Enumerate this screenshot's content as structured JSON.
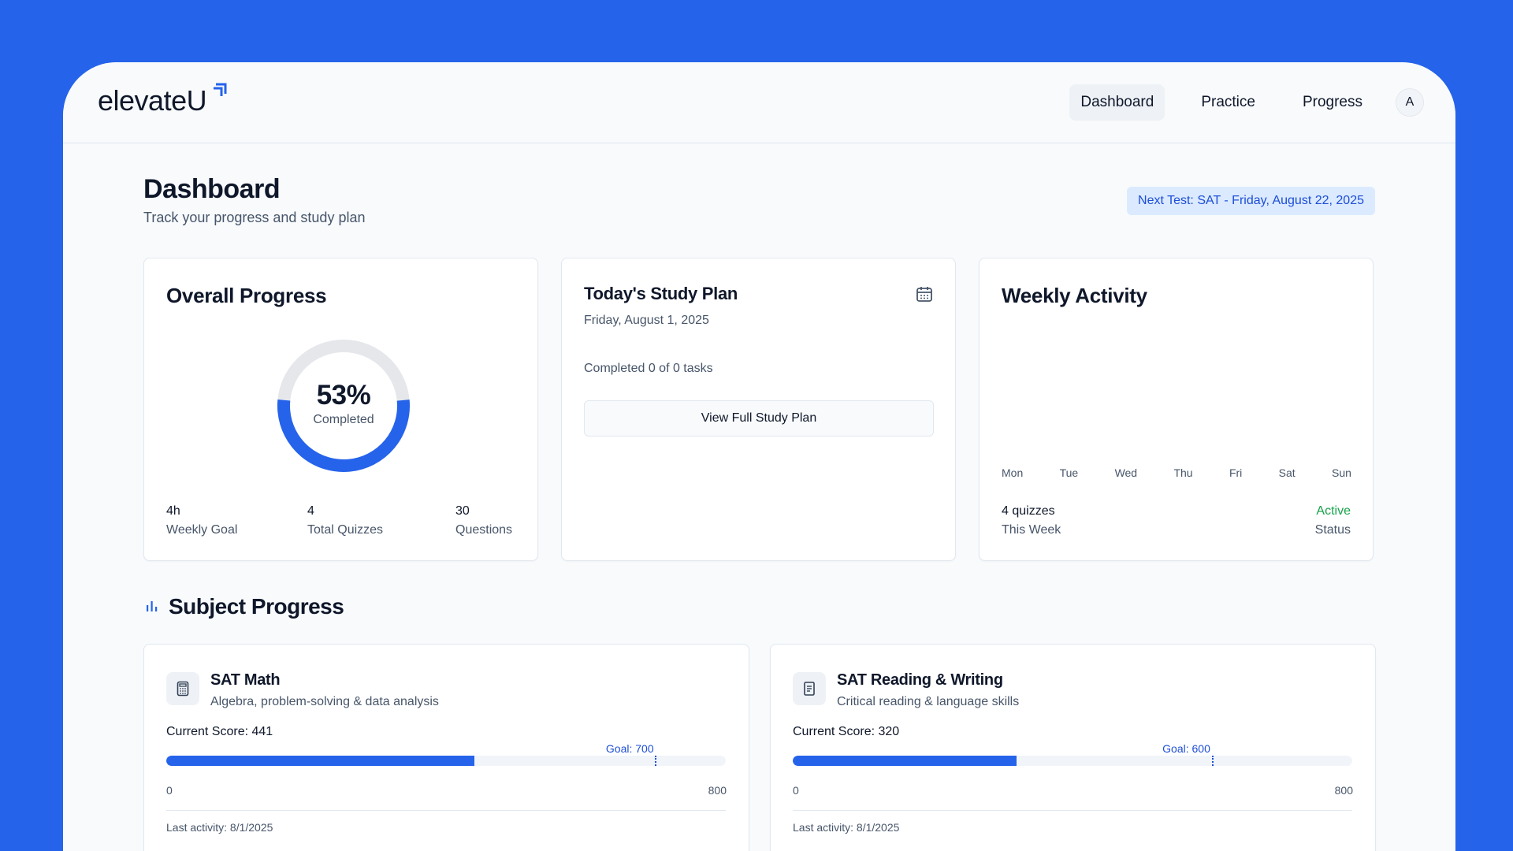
{
  "brand": {
    "name": "elevateU"
  },
  "nav": {
    "items": [
      {
        "label": "Dashboard",
        "active": true
      },
      {
        "label": "Practice",
        "active": false
      },
      {
        "label": "Progress",
        "active": false
      }
    ],
    "avatar_initial": "A"
  },
  "page": {
    "title": "Dashboard",
    "subtitle": "Track your progress and study plan",
    "next_test": "Next Test: SAT - Friday, August 22, 2025"
  },
  "overall": {
    "title": "Overall Progress",
    "percent": 53,
    "percent_label": "53%",
    "completed_label": "Completed",
    "stats": [
      {
        "value": "4h",
        "label": "Weekly Goal"
      },
      {
        "value": "4",
        "label": "Total Quizzes"
      },
      {
        "value": "30",
        "label": "Questions"
      }
    ]
  },
  "study_plan": {
    "title": "Today's Study Plan",
    "date": "Friday, August 1, 2025",
    "completed": "Completed 0 of 0 tasks",
    "button": "View Full Study Plan"
  },
  "weekly": {
    "title": "Weekly Activity",
    "days": [
      "Mon",
      "Tue",
      "Wed",
      "Thu",
      "Fri",
      "Sat",
      "Sun"
    ],
    "quizzes_value": "4 quizzes",
    "quizzes_label": "This Week",
    "status_value": "Active",
    "status_label": "Status"
  },
  "subjects_section": {
    "title": "Subject Progress"
  },
  "subjects": [
    {
      "name": "SAT Math",
      "description": "Algebra, problem-solving & data analysis",
      "score_label": "Current Score: 441",
      "score": 441,
      "goal": 700,
      "goal_label": "Goal: 700",
      "min": "0",
      "max": "800",
      "scale_max": 800,
      "last_activity": "Last activity: 8/1/2025",
      "icon": "calculator-icon"
    },
    {
      "name": "SAT Reading & Writing",
      "description": "Critical reading & language skills",
      "score_label": "Current Score: 320",
      "score": 320,
      "goal": 600,
      "goal_label": "Goal: 600",
      "min": "0",
      "max": "800",
      "scale_max": 800,
      "last_activity": "Last activity: 8/1/2025",
      "icon": "book-icon"
    }
  ],
  "colors": {
    "accent": "#2563eb",
    "goal": "#1d4ed8",
    "active": "#16a34a",
    "ring_track": "#e5e7eb"
  }
}
